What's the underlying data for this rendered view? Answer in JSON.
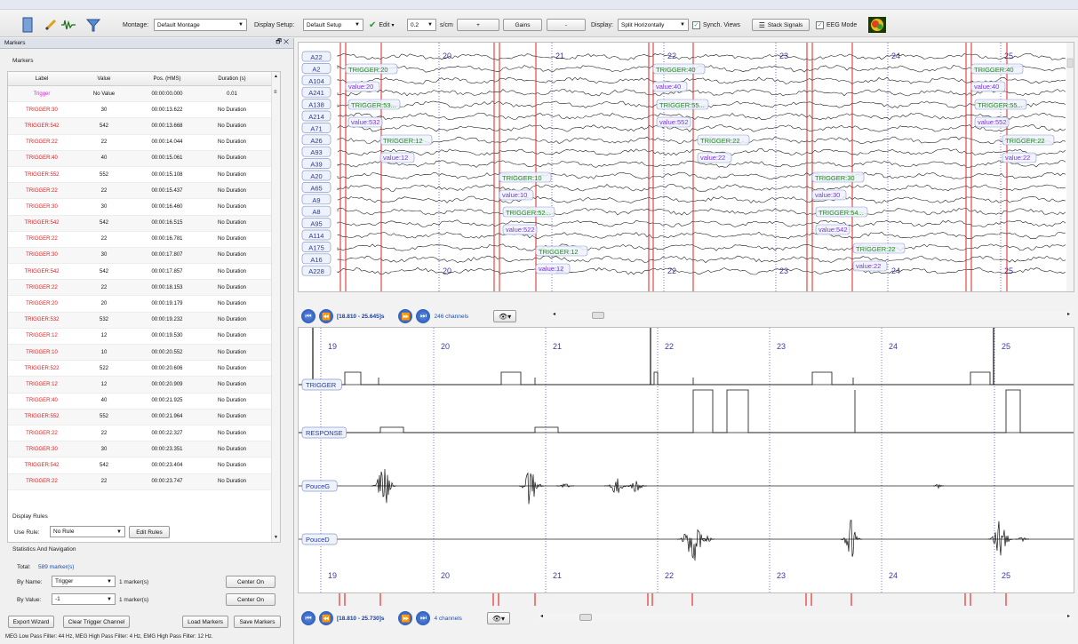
{
  "toolbar": {
    "montage_label": "Montage:",
    "montage_value": "Default Montage",
    "display_setup_label": "Display Setup:",
    "display_setup_value": "Default Setup",
    "edit_label": "Edit",
    "scale_value": "0.2",
    "scale_unit": "s/cm",
    "plus_label": "+",
    "gains_label": "Gains",
    "minus_label": "-",
    "display_label": "Display:",
    "display_value": "Split Horizontally",
    "synch_views_label": "Synch. Views",
    "stack_signals_label": "Stack Signals",
    "eeg_mode_label": "EEG Mode"
  },
  "markers_panel": {
    "title": "Markers",
    "section_markers": "Markers",
    "columns": [
      "Label",
      "Value",
      "Pos. (HMS)",
      "Duration (s)"
    ],
    "rows": [
      {
        "label": "Trigger",
        "value": "No Value",
        "pos": "00:00:00.000",
        "duration": "0.01",
        "color": "#e020e0"
      },
      {
        "label": "TRIGGER:30",
        "value": "30",
        "pos": "00:00:13.622",
        "duration": "No Duration",
        "color": "#e02020"
      },
      {
        "label": "TRIGGER:542",
        "value": "542",
        "pos": "00:00:13.668",
        "duration": "No Duration",
        "color": "#e02020"
      },
      {
        "label": "TRIGGER:22",
        "value": "22",
        "pos": "00:00:14.044",
        "duration": "No Duration",
        "color": "#e02020"
      },
      {
        "label": "TRIGGER:40",
        "value": "40",
        "pos": "00:00:15.061",
        "duration": "No Duration",
        "color": "#e02020"
      },
      {
        "label": "TRIGGER:552",
        "value": "552",
        "pos": "00:00:15.108",
        "duration": "No Duration",
        "color": "#e02020"
      },
      {
        "label": "TRIGGER:22",
        "value": "22",
        "pos": "00:00:15.437",
        "duration": "No Duration",
        "color": "#e02020"
      },
      {
        "label": "TRIGGER:30",
        "value": "30",
        "pos": "00:00:16.460",
        "duration": "No Duration",
        "color": "#e02020"
      },
      {
        "label": "TRIGGER:542",
        "value": "542",
        "pos": "00:00:16.515",
        "duration": "No Duration",
        "color": "#e02020"
      },
      {
        "label": "TRIGGER:22",
        "value": "22",
        "pos": "00:00:16.781",
        "duration": "No Duration",
        "color": "#e02020"
      },
      {
        "label": "TRIGGER:30",
        "value": "30",
        "pos": "00:00:17.807",
        "duration": "No Duration",
        "color": "#e02020"
      },
      {
        "label": "TRIGGER:542",
        "value": "542",
        "pos": "00:00:17.857",
        "duration": "No Duration",
        "color": "#e02020"
      },
      {
        "label": "TRIGGER:22",
        "value": "22",
        "pos": "00:00:18.153",
        "duration": "No Duration",
        "color": "#e02020"
      },
      {
        "label": "TRIGGER:20",
        "value": "20",
        "pos": "00:00:19.179",
        "duration": "No Duration",
        "color": "#e02020"
      },
      {
        "label": "TRIGGER:532",
        "value": "532",
        "pos": "00:00:19.232",
        "duration": "No Duration",
        "color": "#e02020"
      },
      {
        "label": "TRIGGER:12",
        "value": "12",
        "pos": "00:00:19.530",
        "duration": "No Duration",
        "color": "#e02020"
      },
      {
        "label": "TRIGGER:10",
        "value": "10",
        "pos": "00:00:20.552",
        "duration": "No Duration",
        "color": "#e02020"
      },
      {
        "label": "TRIGGER:522",
        "value": "522",
        "pos": "00:00:20.606",
        "duration": "No Duration",
        "color": "#e02020"
      },
      {
        "label": "TRIGGER:12",
        "value": "12",
        "pos": "00:00:20.909",
        "duration": "No Duration",
        "color": "#e02020"
      },
      {
        "label": "TRIGGER:40",
        "value": "40",
        "pos": "00:00:21.925",
        "duration": "No Duration",
        "color": "#e02020"
      },
      {
        "label": "TRIGGER:552",
        "value": "552",
        "pos": "00:00:21.964",
        "duration": "No Duration",
        "color": "#e02020"
      },
      {
        "label": "TRIGGER:22",
        "value": "22",
        "pos": "00:00:22.327",
        "duration": "No Duration",
        "color": "#e02020"
      },
      {
        "label": "TRIGGER:30",
        "value": "30",
        "pos": "00:00:23.351",
        "duration": "No Duration",
        "color": "#e02020"
      },
      {
        "label": "TRIGGER:542",
        "value": "542",
        "pos": "00:00:23.404",
        "duration": "No Duration",
        "color": "#e02020"
      },
      {
        "label": "TRIGGER:22",
        "value": "22",
        "pos": "00:00:23.747",
        "duration": "No Duration",
        "color": "#e02020"
      }
    ],
    "display_rules_title": "Display Rules",
    "use_rule_label": "Use Rule:",
    "use_rule_value": "No Rule",
    "edit_rules_label": "Edit Rules",
    "stats_title": "Statistics And Navigation",
    "total_label": "Total:",
    "total_value": "589 marker(s)",
    "by_name_label": "By Name:",
    "by_name_value": "Trigger",
    "by_name_count": "1 marker(s)",
    "by_value_label": "By Value:",
    "by_value_value": "-1",
    "by_value_count": "1 marker(s)",
    "center_on_label": "Center On",
    "export_wizard_label": "Export Wizard",
    "clear_trigger_label": "Clear Trigger Channel",
    "load_markers_label": "Load Markers",
    "save_markers_label": "Save Markers"
  },
  "top_view": {
    "channels": [
      "A22",
      "A2",
      "A104",
      "A241",
      "A138",
      "A214",
      "A71",
      "A26",
      "A93",
      "A39",
      "A20",
      "A65",
      "A9",
      "A8",
      "A95",
      "A114",
      "A175",
      "A16",
      "A228"
    ],
    "time_ticks": [
      "20",
      "21",
      "22",
      "23",
      "24",
      "25"
    ],
    "markers": [
      {
        "t": "TRIGGER:20",
        "v": "value:20"
      },
      {
        "t": "TRIGGER:53...",
        "v": "value:532"
      },
      {
        "t": "TRIGGER:12",
        "v": "value:12"
      },
      {
        "t": "TRIGGER:10",
        "v": "value:10"
      },
      {
        "t": "TRIGGER:52...",
        "v": "value:522"
      },
      {
        "t": "TRIGGER:12",
        "v": "value:12"
      },
      {
        "t": "TRIGGER:40",
        "v": "value:40"
      },
      {
        "t": "TRIGGER:55...",
        "v": "value:552"
      },
      {
        "t": "TRIGGER:22",
        "v": "value:22"
      },
      {
        "t": "TRIGGER:30",
        "v": "value:30"
      },
      {
        "t": "TRIGGER:54...",
        "v": "value:542"
      },
      {
        "t": "TRIGGER:22",
        "v": "value:22"
      },
      {
        "t": "TRIGGER:40",
        "v": "value:40"
      },
      {
        "t": "TRIGGER:55...",
        "v": "value:552"
      },
      {
        "t": "TRIGGER:22",
        "v": "value:22"
      }
    ],
    "range_text": "[18.810 - 25.645]s",
    "channel_count": "246 channels"
  },
  "bottom_view": {
    "channels": [
      "TRIGGER",
      "RESPONSE",
      "PouceG",
      "PouceD"
    ],
    "time_ticks": [
      "19",
      "20",
      "21",
      "22",
      "23",
      "24",
      "25"
    ],
    "range_text": "[18.810 - 25.730]s",
    "channel_count": "4 channels"
  },
  "status_text": "MEG Low Pass Filter: 44 Hz, MEG High Pass Filter: 4 Hz, EMG High Pass Filter: 12 Hz."
}
